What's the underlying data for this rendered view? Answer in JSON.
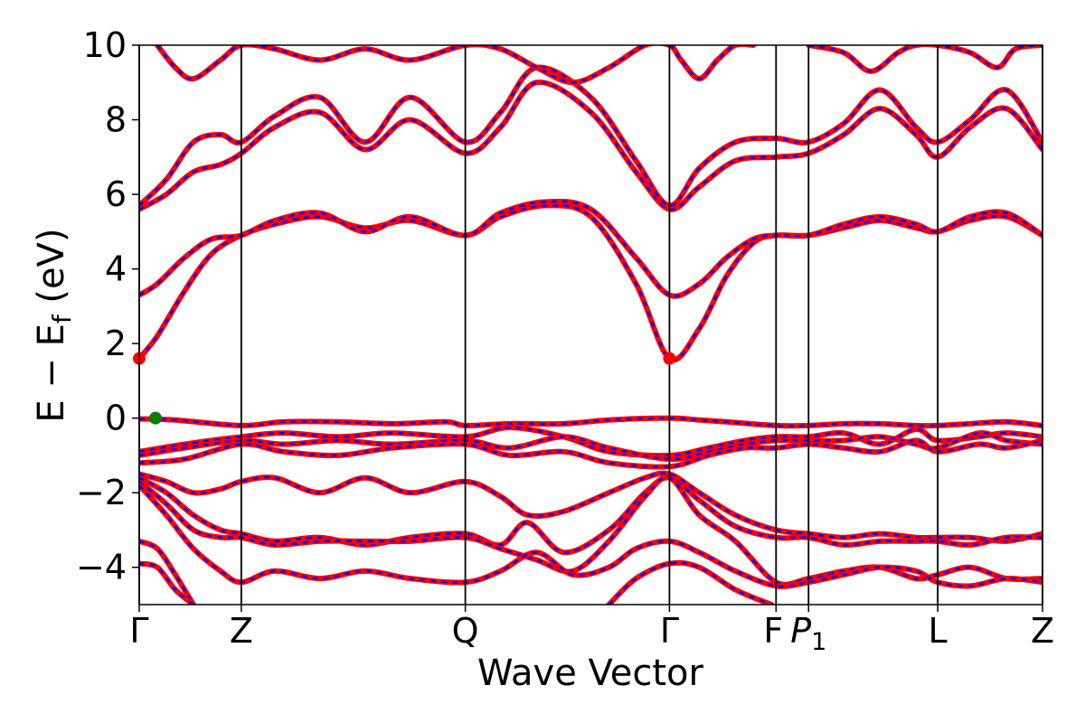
{
  "chart_data": {
    "type": "line",
    "title": "",
    "xlabel": "Wave Vector",
    "ylabel": "E − E_f (eV)",
    "ylabel_parts": {
      "main": "E − E",
      "sub": "f",
      "tail": " (eV)"
    },
    "ylim": [
      -5,
      10
    ],
    "yticks": [
      {
        "value": -4,
        "label": "−4"
      },
      {
        "value": -2,
        "label": "−2"
      },
      {
        "value": 0,
        "label": "0"
      },
      {
        "value": 2,
        "label": "2"
      },
      {
        "value": 4,
        "label": "4"
      },
      {
        "value": 6,
        "label": "6"
      },
      {
        "value": 8,
        "label": "8"
      },
      {
        "value": 10,
        "label": "10"
      }
    ],
    "xlim": [
      0,
      1
    ],
    "high_symmetry_points": [
      {
        "x": 0.0,
        "label": "Γ"
      },
      {
        "x": 0.113,
        "label": "Z"
      },
      {
        "x": 0.361,
        "label": "Q"
      },
      {
        "x": 0.587,
        "label": "Γ"
      },
      {
        "x": 0.705,
        "label": "F",
        "label_main": "F"
      },
      {
        "x": 0.741,
        "label": "P₁",
        "label_main": "P",
        "label_sub": "1"
      },
      {
        "x": 0.884,
        "label": "L"
      },
      {
        "x": 1.0,
        "label": "Z"
      }
    ],
    "grid": false,
    "legend": "none",
    "colors": {
      "series_a": "#ff0000",
      "series_b": "#0000ff",
      "vbm_marker": "#008000",
      "cbm_marker": "#ff0000",
      "kpath_line": "#000000"
    },
    "series": [
      {
        "x": [
          0,
          0.02,
          0.05,
          0.08,
          0.113,
          0.15,
          0.2,
          0.25,
          0.3,
          0.361,
          0.4,
          0.45,
          0.5,
          0.55,
          0.587,
          0.62,
          0.65,
          0.68,
          0.705,
          0.741,
          0.78,
          0.82,
          0.86,
          0.884,
          0.92,
          0.96,
          1.0
        ],
        "y": [
          1.6,
          2.2,
          3.4,
          4.4,
          4.9,
          5.2,
          5.4,
          5.1,
          5.3,
          4.9,
          5.4,
          5.7,
          5.4,
          3.6,
          1.6,
          2.4,
          3.8,
          4.7,
          4.9,
          4.9,
          5.1,
          5.3,
          5.1,
          5.0,
          5.3,
          5.4,
          4.9
        ]
      },
      {
        "x": [
          0,
          0.02,
          0.05,
          0.08,
          0.113,
          0.15,
          0.2,
          0.25,
          0.3,
          0.361,
          0.4,
          0.45,
          0.5,
          0.55,
          0.587,
          0.62,
          0.65,
          0.68,
          0.705,
          0.741,
          0.78,
          0.82,
          0.86,
          0.884,
          0.92,
          0.96,
          1.0
        ],
        "y": [
          3.3,
          3.6,
          4.3,
          4.8,
          4.9,
          5.3,
          5.5,
          5.0,
          5.4,
          4.9,
          5.5,
          5.8,
          5.6,
          4.3,
          3.3,
          3.6,
          4.3,
          4.8,
          4.9,
          4.9,
          5.2,
          5.4,
          5.2,
          5.0,
          5.4,
          5.5,
          4.9
        ]
      },
      {
        "x": [
          0,
          0.03,
          0.06,
          0.09,
          0.113,
          0.15,
          0.2,
          0.25,
          0.3,
          0.361,
          0.4,
          0.44,
          0.5,
          0.55,
          0.587,
          0.62,
          0.66,
          0.705,
          0.741,
          0.78,
          0.82,
          0.86,
          0.884,
          0.92,
          0.96,
          1.0
        ],
        "y": [
          5.6,
          6.0,
          6.6,
          6.8,
          7.1,
          7.8,
          8.2,
          7.2,
          8.0,
          7.1,
          7.8,
          9.0,
          8.2,
          6.6,
          5.6,
          6.2,
          6.9,
          7.0,
          7.1,
          7.6,
          8.3,
          7.6,
          7.0,
          7.8,
          8.3,
          7.2
        ]
      },
      {
        "x": [
          0,
          0.03,
          0.06,
          0.09,
          0.113,
          0.15,
          0.2,
          0.25,
          0.3,
          0.361,
          0.4,
          0.44,
          0.5,
          0.55,
          0.587,
          0.62,
          0.66,
          0.705,
          0.741,
          0.78,
          0.82,
          0.86,
          0.884,
          0.92,
          0.96,
          1.0
        ],
        "y": [
          5.7,
          6.4,
          7.4,
          7.6,
          7.4,
          8.1,
          8.6,
          7.4,
          8.6,
          7.4,
          8.2,
          9.4,
          8.6,
          6.9,
          5.7,
          6.7,
          7.4,
          7.5,
          7.4,
          7.9,
          8.8,
          7.8,
          7.4,
          8.0,
          8.8,
          7.4
        ]
      },
      {
        "x": [
          0,
          0.04,
          0.113,
          0.16,
          0.22,
          0.28,
          0.34,
          0.361,
          0.41,
          0.47,
          0.52,
          0.587,
          0.62,
          0.65,
          0.705,
          0.741,
          0.78,
          0.82,
          0.86,
          0.884,
          0.92,
          0.96,
          1.0
        ],
        "y": [
          -0.02,
          -0.05,
          -0.2,
          -0.1,
          -0.1,
          -0.15,
          -0.1,
          -0.2,
          -0.15,
          -0.15,
          -0.05,
          0.0,
          -0.05,
          -0.1,
          -0.2,
          -0.2,
          -0.15,
          -0.15,
          -0.2,
          -0.2,
          -0.15,
          -0.1,
          -0.2
        ]
      },
      {
        "x": [
          0,
          0.05,
          0.113,
          0.16,
          0.22,
          0.28,
          0.361,
          0.41,
          0.47,
          0.52,
          0.587,
          0.63,
          0.67,
          0.705,
          0.741,
          0.78,
          0.82,
          0.86,
          0.884,
          0.93,
          0.96,
          1.0
        ],
        "y": [
          -0.9,
          -0.7,
          -0.5,
          -0.4,
          -0.5,
          -0.4,
          -0.5,
          -0.25,
          -0.5,
          -0.9,
          -1.0,
          -0.8,
          -0.6,
          -0.5,
          -0.5,
          -0.4,
          -0.7,
          -0.3,
          -0.6,
          -0.5,
          -0.4,
          -0.5
        ]
      },
      {
        "x": [
          0,
          0.05,
          0.113,
          0.16,
          0.22,
          0.28,
          0.361,
          0.41,
          0.47,
          0.52,
          0.587,
          0.63,
          0.67,
          0.705,
          0.741,
          0.78,
          0.82,
          0.86,
          0.884,
          0.93,
          0.96,
          1.0
        ],
        "y": [
          -1.0,
          -0.8,
          -0.6,
          -0.7,
          -0.6,
          -0.7,
          -0.6,
          -0.8,
          -0.5,
          -0.8,
          -1.1,
          -0.9,
          -0.7,
          -0.6,
          -0.6,
          -0.6,
          -0.5,
          -0.7,
          -0.8,
          -0.4,
          -0.6,
          -0.7
        ]
      },
      {
        "x": [
          0,
          0.05,
          0.113,
          0.16,
          0.22,
          0.28,
          0.361,
          0.41,
          0.47,
          0.52,
          0.587,
          0.63,
          0.67,
          0.705,
          0.741,
          0.78,
          0.82,
          0.86,
          0.884,
          0.93,
          0.96,
          1.0
        ],
        "y": [
          -1.2,
          -1.1,
          -0.7,
          -0.9,
          -1.0,
          -0.8,
          -0.7,
          -1.0,
          -0.9,
          -1.2,
          -1.3,
          -1.0,
          -0.8,
          -0.8,
          -0.7,
          -0.8,
          -0.9,
          -0.6,
          -0.9,
          -0.7,
          -0.8,
          -0.6
        ]
      },
      {
        "x": [
          0,
          0.03,
          0.06,
          0.09,
          0.113,
          0.15,
          0.2,
          0.25,
          0.3,
          0.361,
          0.4,
          0.43,
          0.47,
          0.52,
          0.56,
          0.587,
          0.62,
          0.66,
          0.705,
          0.741,
          0.78,
          0.82,
          0.86,
          0.884,
          0.92,
          0.96,
          1.0
        ],
        "y": [
          -1.5,
          -1.7,
          -2.0,
          -1.9,
          -1.7,
          -1.6,
          -2.0,
          -1.6,
          -2.0,
          -1.7,
          -2.1,
          -2.6,
          -2.5,
          -2.0,
          -1.6,
          -1.5,
          -2.0,
          -2.6,
          -3.0,
          -3.1,
          -3.2,
          -3.1,
          -3.2,
          -3.2,
          -3.2,
          -3.3,
          -3.1
        ]
      },
      {
        "x": [
          0,
          0.03,
          0.06,
          0.09,
          0.113,
          0.15,
          0.2,
          0.25,
          0.3,
          0.361,
          0.4,
          0.43,
          0.47,
          0.52,
          0.56,
          0.587,
          0.62,
          0.66,
          0.705,
          0.741,
          0.78,
          0.82,
          0.86,
          0.884,
          0.92,
          0.96,
          1.0
        ],
        "y": [
          -1.6,
          -2.0,
          -2.6,
          -3.0,
          -3.1,
          -3.3,
          -3.2,
          -3.4,
          -3.2,
          -3.1,
          -3.4,
          -2.8,
          -3.6,
          -3.0,
          -2.0,
          -1.6,
          -2.2,
          -2.9,
          -3.2,
          -3.2,
          -3.4,
          -3.3,
          -3.3,
          -3.3,
          -3.4,
          -3.2,
          -3.2
        ]
      },
      {
        "x": [
          0,
          0.03,
          0.06,
          0.09,
          0.113,
          0.15,
          0.2,
          0.25,
          0.3,
          0.361,
          0.4,
          0.44,
          0.48,
          0.52,
          0.56,
          0.587,
          0.62,
          0.66,
          0.705,
          0.741,
          0.78,
          0.82,
          0.86,
          0.884,
          0.92,
          0.96,
          1.0
        ],
        "y": [
          -1.7,
          -2.3,
          -3.0,
          -3.2,
          -3.2,
          -3.4,
          -3.3,
          -3.3,
          -3.3,
          -3.2,
          -3.5,
          -3.8,
          -4.1,
          -3.3,
          -2.1,
          -1.6,
          -2.6,
          -3.3,
          -4.4,
          -4.3,
          -4.1,
          -4.0,
          -4.3,
          -4.2,
          -4.0,
          -4.3,
          -4.3
        ]
      },
      {
        "x": [
          0,
          0.03,
          0.06,
          0.09,
          0.113,
          0.15,
          0.2,
          0.25,
          0.3,
          0.361,
          0.4,
          0.44,
          0.48,
          0.52,
          0.55,
          0.587,
          0.62,
          0.66,
          0.705,
          0.741,
          0.78,
          0.82,
          0.86,
          0.884,
          0.92,
          0.96,
          1.0
        ],
        "y": [
          -1.8,
          -2.6,
          -3.5,
          -4.1,
          -4.4,
          -4.1,
          -4.3,
          -4.1,
          -4.3,
          -4.4,
          -4.1,
          -3.6,
          -4.2,
          -4.0,
          -3.5,
          -3.3,
          -3.6,
          -4.1,
          -4.5,
          -4.4,
          -4.2,
          -4.0,
          -4.1,
          -4.4,
          -4.5,
          -4.3,
          -4.4
        ]
      },
      {
        "x": [
          0,
          0.02,
          0.04,
          0.06
        ],
        "y": [
          -3.3,
          -3.5,
          -4.2,
          -5.0
        ]
      },
      {
        "x": [
          0,
          0.02,
          0.04,
          0.06
        ],
        "y": [
          -3.9,
          -4.0,
          -4.6,
          -5.0
        ]
      },
      {
        "x": [
          0.52,
          0.55,
          0.587,
          0.62,
          0.66,
          0.7
        ],
        "y": [
          -5.0,
          -4.3,
          -3.9,
          -4.0,
          -4.6,
          -5.0
        ]
      },
      {
        "x": [
          0.02,
          0.04,
          0.06,
          0.09,
          0.113,
          0.15,
          0.2,
          0.25,
          0.3,
          0.361,
          0.4,
          0.44,
          0.48,
          0.52,
          0.56,
          0.587,
          0.6,
          0.62,
          0.64,
          0.66,
          0.68
        ],
        "y": [
          10.0,
          9.4,
          9.1,
          9.6,
          10.0,
          9.9,
          9.6,
          9.9,
          9.6,
          10.0,
          9.9,
          9.4,
          9.0,
          9.4,
          10.0,
          10.0,
          9.6,
          9.1,
          9.6,
          10.0,
          10.0
        ]
      },
      {
        "x": [
          0.741,
          0.78,
          0.81,
          0.84,
          0.86,
          0.884,
          0.92,
          0.95,
          0.97,
          1.0
        ],
        "y": [
          10.0,
          9.8,
          9.3,
          9.8,
          10.0,
          10.0,
          9.8,
          9.4,
          9.9,
          10.0
        ]
      }
    ],
    "markers": [
      {
        "name": "vbm",
        "x": 0.018,
        "y": 0.0
      },
      {
        "name": "cbm-left",
        "x": 0.0,
        "y": 1.6
      },
      {
        "name": "cbm-gamma",
        "x": 0.587,
        "y": 1.6
      }
    ]
  }
}
